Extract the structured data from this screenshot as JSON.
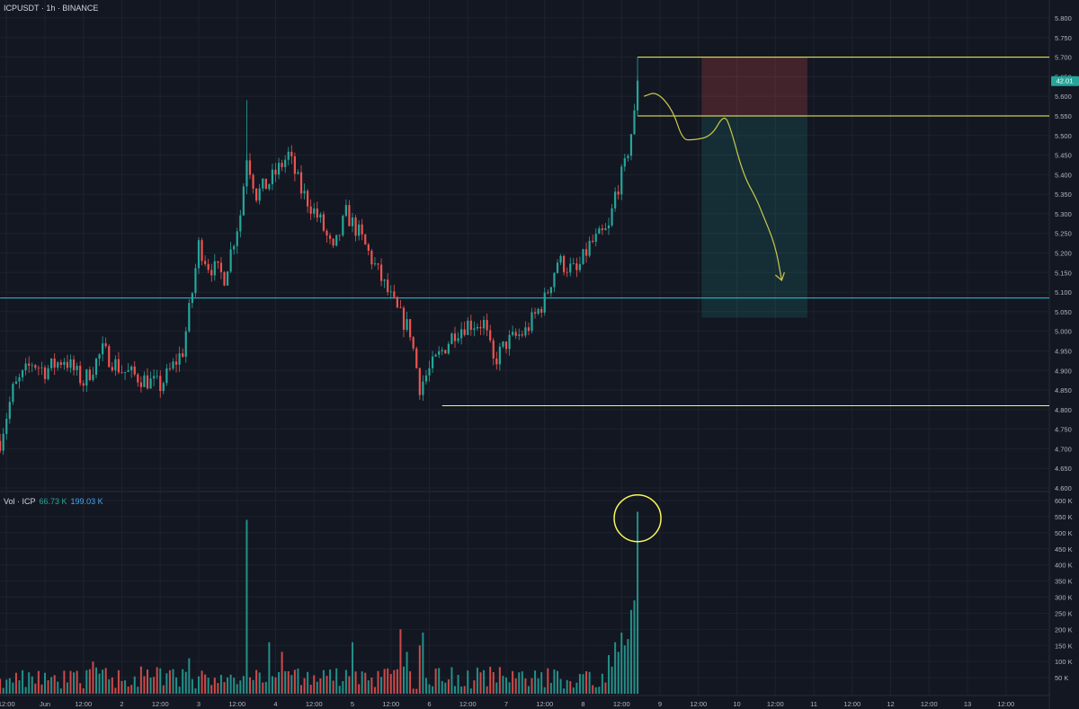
{
  "header": {
    "title": "ICPUSDT · 1h · BINANCE"
  },
  "volume_header": {
    "label": "Vol · ICP",
    "value_green": "66.73 K",
    "value_blue": "199.03 K"
  },
  "price_badge": "42.01",
  "colors": {
    "up": "#26a69a",
    "down": "#ef5350",
    "level": "#f7f75a",
    "support": "#26c6da",
    "drawing": "#cbc84c"
  },
  "chart_data": [
    {
      "type": "candlestick",
      "title": "ICPUSDT · 1h · BINANCE",
      "y_ticks": [
        "5.800",
        "5.750",
        "5.700",
        "5.650",
        "5.600",
        "5.550",
        "5.500",
        "5.450",
        "5.400",
        "5.350",
        "5.300",
        "5.250",
        "5.200",
        "5.150",
        "5.100",
        "5.050",
        "5.000",
        "4.950",
        "4.900",
        "4.850",
        "4.800",
        "4.750",
        "4.700",
        "4.650",
        "4.600"
      ],
      "ylim": [
        4.6,
        5.8
      ],
      "x_ticks": [
        "12:00",
        "Jun",
        "12:00",
        "2",
        "12:00",
        "3",
        "12:00",
        "4",
        "12:00",
        "5",
        "12:00",
        "6",
        "12:00",
        "7",
        "12:00",
        "8",
        "12:00",
        "9",
        "12:00",
        "10",
        "12:00",
        "11",
        "12:00",
        "12",
        "12:00",
        "13",
        "12:00"
      ],
      "x_tick_hours": [
        -12,
        0,
        12,
        24,
        36,
        48,
        60,
        72,
        84,
        96,
        108,
        120,
        132,
        144,
        156,
        168,
        180,
        192,
        204,
        216,
        228,
        240,
        252,
        264,
        276,
        288,
        300
      ],
      "levels": [
        {
          "price": 5.7,
          "from_hour": 185,
          "color": "#f7f75a"
        },
        {
          "price": 5.55,
          "from_hour": 185,
          "color": "#f7f75a"
        },
        {
          "price": 4.81,
          "from_hour": 124,
          "color": "#f7f75a"
        },
        {
          "price": 5.085,
          "from_hour": -14,
          "color": "#26c6da"
        }
      ],
      "position_box": {
        "from_hour": 205,
        "to_hour": 238,
        "entry": 5.55,
        "stop": 5.7,
        "target": 5.035
      },
      "anchors": [
        {
          "hour": -14,
          "price": 4.72
        },
        {
          "hour": -10,
          "price": 4.85
        },
        {
          "hour": -4,
          "price": 4.92
        },
        {
          "hour": 0,
          "price": 4.9
        },
        {
          "hour": 6,
          "price": 4.93
        },
        {
          "hour": 12,
          "price": 4.87
        },
        {
          "hour": 18,
          "price": 4.95
        },
        {
          "hour": 24,
          "price": 4.9
        },
        {
          "hour": 30,
          "price": 4.88
        },
        {
          "hour": 36,
          "price": 4.86
        },
        {
          "hour": 43,
          "price": 4.95
        },
        {
          "hour": 46,
          "price": 5.1
        },
        {
          "hour": 48,
          "price": 5.22
        },
        {
          "hour": 51,
          "price": 5.17
        },
        {
          "hour": 56,
          "price": 5.14
        },
        {
          "hour": 61,
          "price": 5.3
        },
        {
          "hour": 63,
          "price": 5.45
        },
        {
          "hour": 66,
          "price": 5.35
        },
        {
          "hour": 70,
          "price": 5.38
        },
        {
          "hour": 76,
          "price": 5.45
        },
        {
          "hour": 80,
          "price": 5.36
        },
        {
          "hour": 86,
          "price": 5.28
        },
        {
          "hour": 90,
          "price": 5.2
        },
        {
          "hour": 94,
          "price": 5.3
        },
        {
          "hour": 98,
          "price": 5.25
        },
        {
          "hour": 104,
          "price": 5.15
        },
        {
          "hour": 110,
          "price": 5.05
        },
        {
          "hour": 114,
          "price": 5.0
        },
        {
          "hour": 117,
          "price": 4.86
        },
        {
          "hour": 120,
          "price": 4.9
        },
        {
          "hour": 124,
          "price": 4.95
        },
        {
          "hour": 128,
          "price": 5.0
        },
        {
          "hour": 132,
          "price": 5.02
        },
        {
          "hour": 137,
          "price": 5.02
        },
        {
          "hour": 140,
          "price": 4.92
        },
        {
          "hour": 144,
          "price": 4.97
        },
        {
          "hour": 150,
          "price": 5.0
        },
        {
          "hour": 156,
          "price": 5.08
        },
        {
          "hour": 160,
          "price": 5.18
        },
        {
          "hour": 166,
          "price": 5.15
        },
        {
          "hour": 170,
          "price": 5.22
        },
        {
          "hour": 176,
          "price": 5.26
        },
        {
          "hour": 178,
          "price": 5.35
        },
        {
          "hour": 181,
          "price": 5.42
        },
        {
          "hour": 184,
          "price": 5.55
        },
        {
          "hour": 185,
          "price": 5.63
        }
      ],
      "drawing_path": [
        {
          "hour": 187,
          "price": 5.6
        },
        {
          "hour": 191,
          "price": 5.612
        },
        {
          "hour": 196,
          "price": 5.565
        },
        {
          "hour": 199,
          "price": 5.49
        },
        {
          "hour": 202,
          "price": 5.488
        },
        {
          "hour": 208,
          "price": 5.497
        },
        {
          "hour": 212,
          "price": 5.555
        },
        {
          "hour": 214,
          "price": 5.52
        },
        {
          "hour": 218,
          "price": 5.4
        },
        {
          "hour": 222,
          "price": 5.34
        },
        {
          "hour": 224,
          "price": 5.3
        },
        {
          "hour": 228,
          "price": 5.22
        },
        {
          "hour": 230,
          "price": 5.13
        }
      ]
    },
    {
      "type": "bar",
      "title": "Vol · ICP",
      "y_ticks": [
        "600 K",
        "550 K",
        "500 K",
        "450 K",
        "400 K",
        "350 K",
        "300 K",
        "250 K",
        "200 K",
        "150 K",
        "100 K",
        "50 K"
      ],
      "ylim": [
        0,
        600000
      ],
      "spikes": [
        {
          "hour": 63,
          "value": 540000
        },
        {
          "hour": 185,
          "value": 565000
        },
        {
          "hour": 184,
          "value": 290000
        },
        {
          "hour": 183,
          "value": 260000
        },
        {
          "hour": 182,
          "value": 170000
        },
        {
          "hour": 181,
          "value": 150000
        },
        {
          "hour": 180,
          "value": 190000
        },
        {
          "hour": 179,
          "value": 130000
        },
        {
          "hour": 178,
          "value": 160000
        },
        {
          "hour": 176,
          "value": 120000
        },
        {
          "hour": 111,
          "value": 200000
        },
        {
          "hour": 113,
          "value": 130000
        },
        {
          "hour": 118,
          "value": 190000
        },
        {
          "hour": 117,
          "value": 150000
        },
        {
          "hour": 96,
          "value": 160000
        },
        {
          "hour": 70,
          "value": 160000
        },
        {
          "hour": 74,
          "value": 130000
        },
        {
          "hour": 45,
          "value": 110000
        },
        {
          "hour": 15,
          "value": 100000
        }
      ]
    }
  ]
}
